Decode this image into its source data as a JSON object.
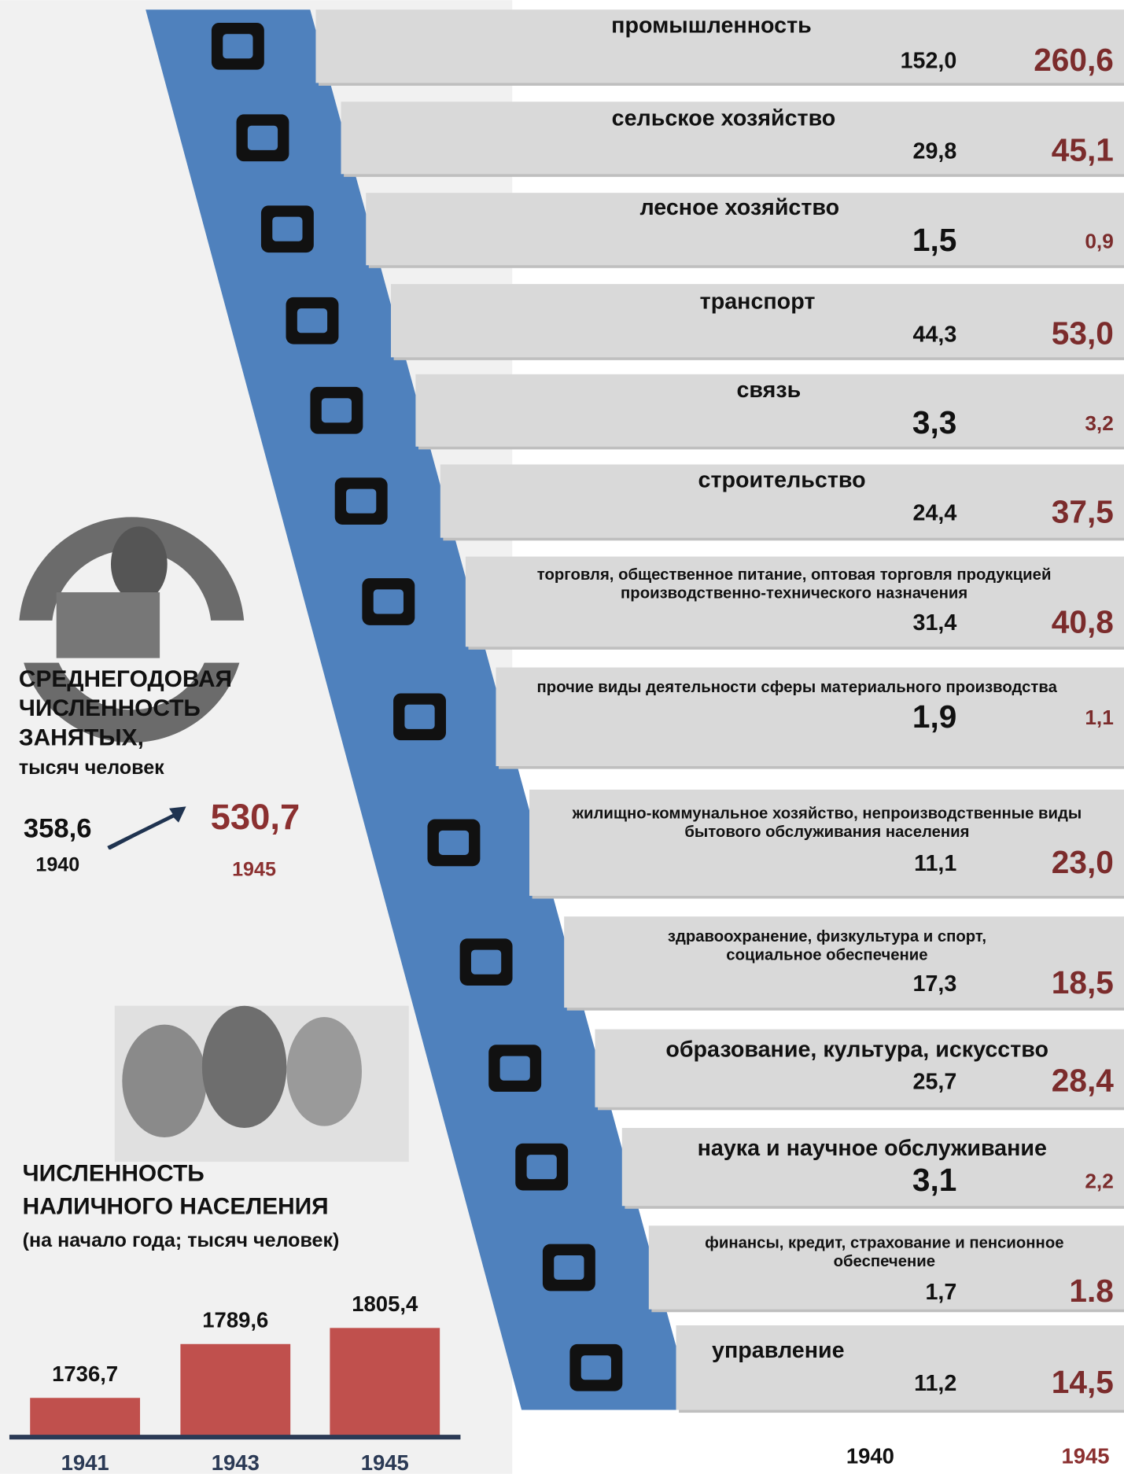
{
  "employment": {
    "title_lines": [
      "СРЕДНЕГОДОВАЯ",
      "ЧИСЛЕННОСТЬ",
      "ЗАНЯТЫХ,"
    ],
    "unit": "тысяч человек",
    "total_1940": "358,6",
    "year_1940": "1940",
    "total_1945": "530,7",
    "year_1945": "1945"
  },
  "sectors": [
    {
      "name_lines": [
        "промышленность"
      ],
      "v1940": "152,0",
      "v1945": "260,6"
    },
    {
      "name_lines": [
        "сельское хозяйство"
      ],
      "v1940": "29,8",
      "v1945": "45,1"
    },
    {
      "name_lines": [
        "лесное хозяйство"
      ],
      "v1940": "1,5",
      "v1945": "0,9"
    },
    {
      "name_lines": [
        "транспорт"
      ],
      "v1940": "44,3",
      "v1945": "53,0"
    },
    {
      "name_lines": [
        "связь"
      ],
      "v1940": "3,3",
      "v1945": "3,2"
    },
    {
      "name_lines": [
        "строительство"
      ],
      "v1940": "24,4",
      "v1945": "37,5"
    },
    {
      "name_lines": [
        "торговля, общественное питание, оптовая торговля продукцией",
        "производственно-технического назначения"
      ],
      "v1940": "31,4",
      "v1945": "40,8"
    },
    {
      "name_lines": [
        "прочие виды деятельности сферы материального производства"
      ],
      "v1940": "1,9",
      "v1945": "1,1"
    },
    {
      "name_lines": [
        "жилищно-коммунальное хозяйство, непроизводственные виды",
        "бытового обслуживания населения"
      ],
      "v1940": "11,1",
      "v1945": "23,0"
    },
    {
      "name_lines": [
        "здравоохранение, физкультура и спорт,",
        "социальное обеспечение"
      ],
      "v1940": "17,3",
      "v1945": "18,5"
    },
    {
      "name_lines": [
        "образование, культура, искусство"
      ],
      "v1940": "25,7",
      "v1945": "28,4"
    },
    {
      "name_lines": [
        "наука и научное обслуживание"
      ],
      "v1940": "3,1",
      "v1945": "2,2"
    },
    {
      "name_lines": [
        "финансы, кредит, страхование и пенсионное",
        "обеспечение"
      ],
      "v1940": "1,7",
      "v1945": "1.8"
    },
    {
      "name_lines": [
        "управление"
      ],
      "v1940": "11,2",
      "v1945": "14,5"
    }
  ],
  "column_years": [
    "1940",
    "1945"
  ],
  "chart_data": {
    "type": "bar",
    "title_lines": [
      "ЧИСЛЕННОСТЬ",
      "НАЛИЧНОГО НАСЕЛЕНИЯ"
    ],
    "subtitle": "(на начало года; тысяч человек)",
    "categories": [
      "1941",
      "1943",
      "1945"
    ],
    "values": [
      1736.7,
      1789.6,
      1805.4
    ],
    "value_labels": [
      "1736,7",
      "1789,6",
      "1805,4"
    ],
    "color": "#c0504d",
    "ylim": [
      1700,
      1820
    ]
  }
}
